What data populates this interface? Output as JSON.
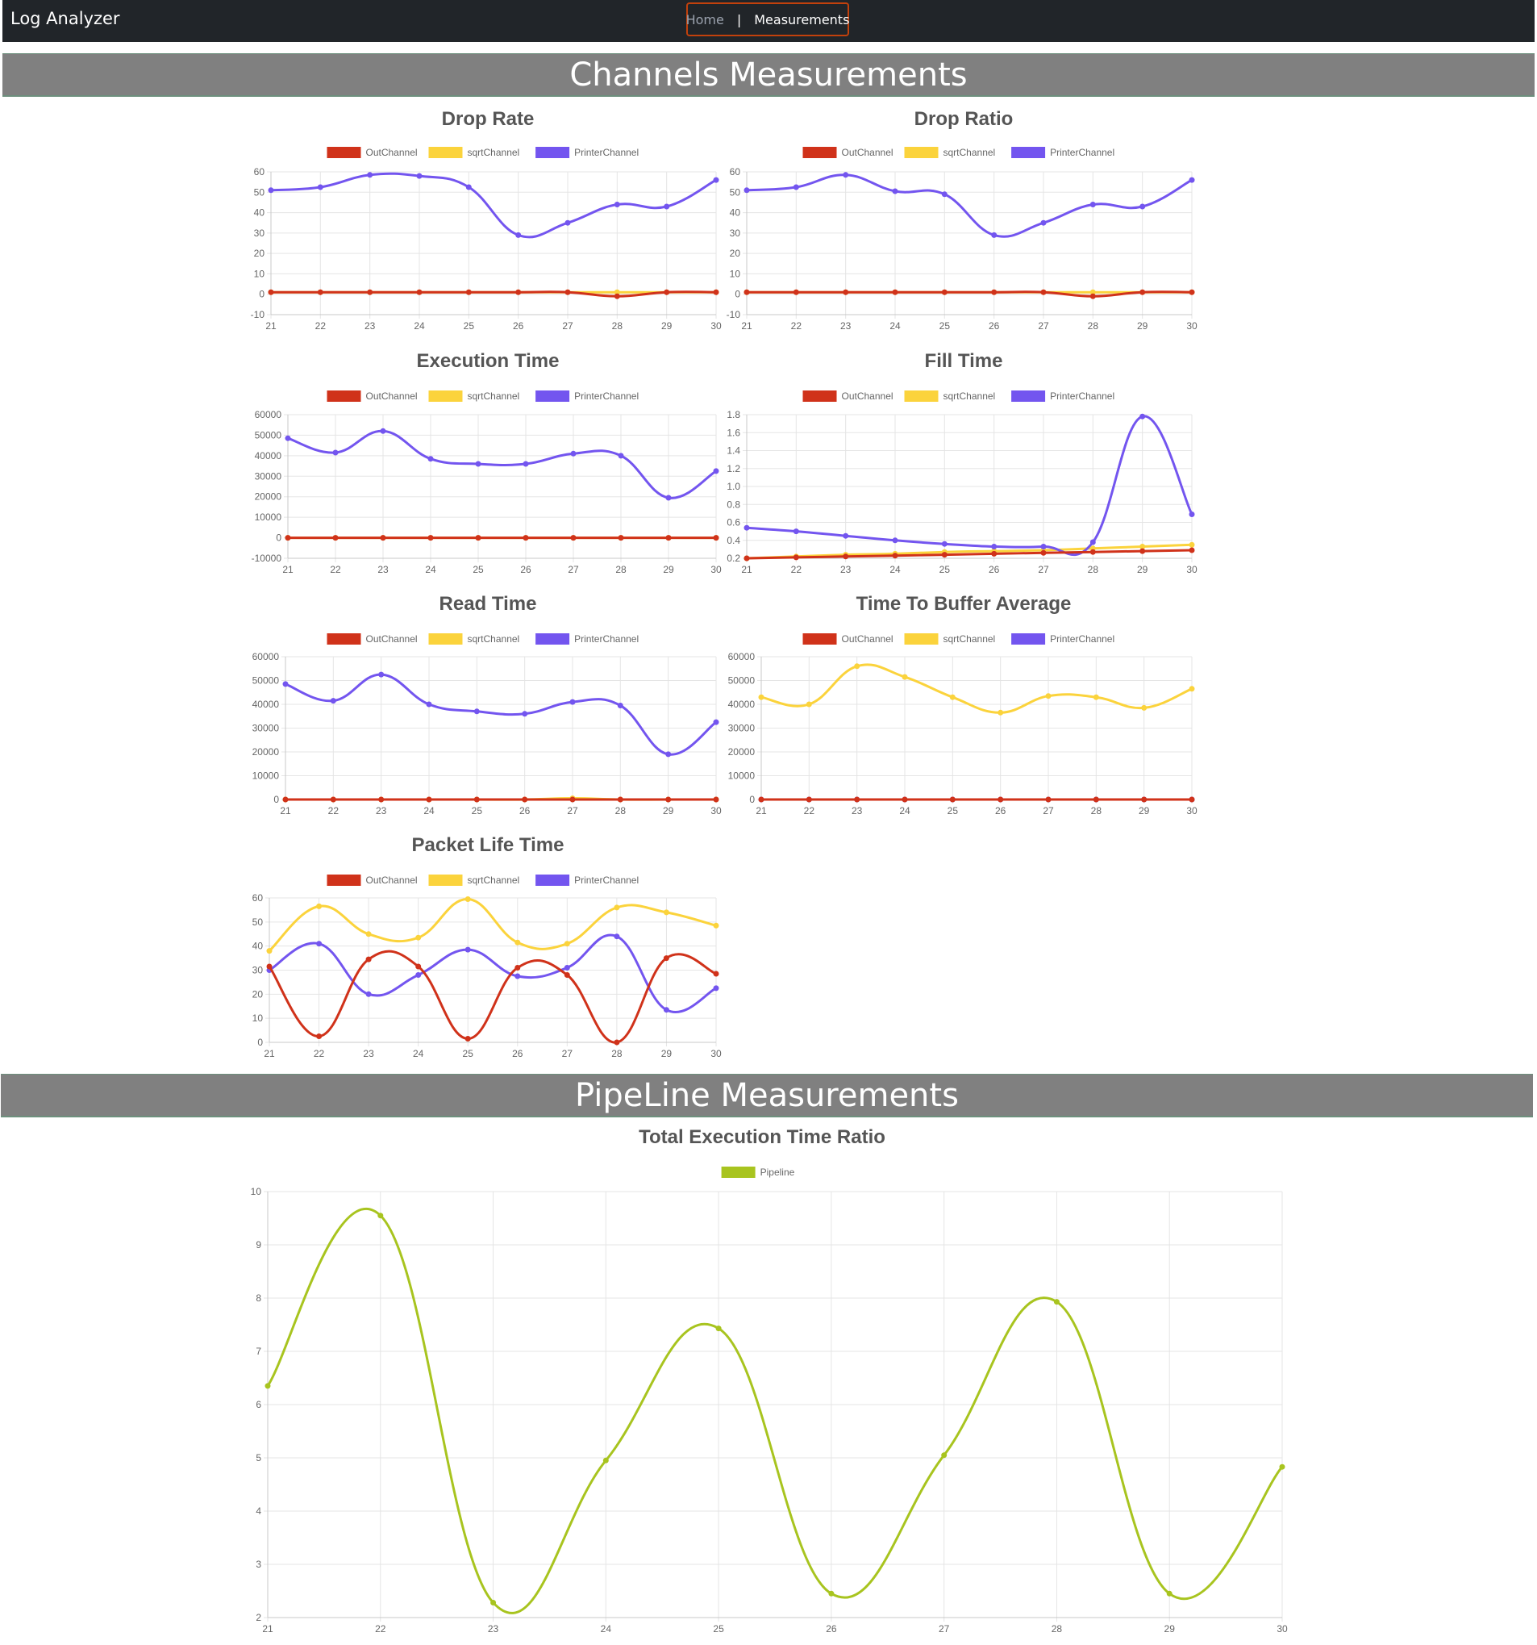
{
  "nav": {
    "brand": "Log Analyzer",
    "links": [
      "Home",
      "Measurements"
    ],
    "separator": "|"
  },
  "sections": {
    "channels": "Channels Measurements",
    "pipeline": "PipeLine Measurements"
  },
  "colors": {
    "OutChannel": "#d0321a",
    "sqrtChannel": "#fbd33c",
    "PrinterChannel": "#7355ef",
    "Pipeline": "#a8c41f",
    "grid": "#e5e5e5"
  },
  "chart_data": [
    {
      "type": "line",
      "title": "Drop Rate",
      "x": [
        21,
        22,
        23,
        24,
        25,
        26,
        27,
        28,
        29,
        30
      ],
      "ylim": [
        -10,
        60
      ],
      "yticks": [
        -10,
        0,
        10,
        20,
        30,
        40,
        50,
        60
      ],
      "series": [
        {
          "name": "OutChannel",
          "values": [
            1,
            1,
            1,
            1,
            1,
            1,
            1,
            -1,
            1,
            1
          ]
        },
        {
          "name": "sqrtChannel",
          "values": [
            1,
            1,
            1,
            1,
            1,
            1,
            1,
            1,
            1,
            1
          ]
        },
        {
          "name": "PrinterChannel",
          "values": [
            51,
            52.5,
            58.5,
            58,
            52.5,
            29,
            35,
            44,
            43,
            56
          ]
        }
      ]
    },
    {
      "type": "line",
      "title": "Drop Ratio",
      "x": [
        21,
        22,
        23,
        24,
        25,
        26,
        27,
        28,
        29,
        30
      ],
      "ylim": [
        -10,
        60
      ],
      "yticks": [
        -10,
        0,
        10,
        20,
        30,
        40,
        50,
        60
      ],
      "series": [
        {
          "name": "OutChannel",
          "values": [
            1,
            1,
            1,
            1,
            1,
            1,
            1,
            -1,
            1,
            1
          ]
        },
        {
          "name": "sqrtChannel",
          "values": [
            1,
            1,
            1,
            1,
            1,
            1,
            1,
            1,
            1,
            1
          ]
        },
        {
          "name": "PrinterChannel",
          "values": [
            51,
            52.5,
            58.5,
            50.5,
            49,
            29,
            35,
            44,
            43,
            56
          ]
        }
      ]
    },
    {
      "type": "line",
      "title": "Execution Time",
      "x": [
        21,
        22,
        23,
        24,
        25,
        26,
        27,
        28,
        29,
        30
      ],
      "ylim": [
        -10000,
        60000
      ],
      "yticks": [
        -10000,
        0,
        10000,
        20000,
        30000,
        40000,
        50000,
        60000
      ],
      "series": [
        {
          "name": "OutChannel",
          "values": [
            0,
            0,
            0,
            0,
            0,
            0,
            0,
            0,
            0,
            0
          ]
        },
        {
          "name": "sqrtChannel",
          "values": [
            0,
            0,
            0,
            0,
            0,
            0,
            0,
            0,
            0,
            0
          ]
        },
        {
          "name": "PrinterChannel",
          "values": [
            48500,
            41500,
            52000,
            38500,
            36000,
            36000,
            41000,
            40000,
            19500,
            32500
          ]
        }
      ]
    },
    {
      "type": "line",
      "title": "Fill Time",
      "x": [
        21,
        22,
        23,
        24,
        25,
        26,
        27,
        28,
        29,
        30
      ],
      "ylim": [
        0.2,
        1.8
      ],
      "yticks": [
        0.2,
        0.4,
        0.6,
        0.8,
        1.0,
        1.2,
        1.4,
        1.6,
        1.8
      ],
      "series": [
        {
          "name": "OutChannel",
          "values": [
            0.2,
            0.21,
            0.22,
            0.23,
            0.24,
            0.25,
            0.26,
            0.27,
            0.28,
            0.29
          ]
        },
        {
          "name": "sqrtChannel",
          "values": [
            0.2,
            0.22,
            0.24,
            0.25,
            0.27,
            0.28,
            0.29,
            0.31,
            0.33,
            0.35
          ]
        },
        {
          "name": "PrinterChannel",
          "values": [
            0.54,
            0.5,
            0.45,
            0.4,
            0.36,
            0.33,
            0.33,
            0.38,
            1.78,
            0.69
          ]
        }
      ]
    },
    {
      "type": "line",
      "title": "Read Time",
      "x": [
        21,
        22,
        23,
        24,
        25,
        26,
        27,
        28,
        29,
        30
      ],
      "ylim": [
        0,
        60000
      ],
      "yticks": [
        0,
        10000,
        20000,
        30000,
        40000,
        50000,
        60000
      ],
      "series": [
        {
          "name": "OutChannel",
          "values": [
            0,
            0,
            0,
            0,
            0,
            0,
            0,
            0,
            0,
            0
          ]
        },
        {
          "name": "sqrtChannel",
          "values": [
            0,
            0,
            0,
            0,
            0,
            0,
            500,
            0,
            0,
            0
          ]
        },
        {
          "name": "PrinterChannel",
          "values": [
            48500,
            41500,
            52500,
            40000,
            37000,
            36000,
            41000,
            39500,
            19000,
            32500
          ]
        }
      ]
    },
    {
      "type": "line",
      "title": "Time To Buffer Average",
      "x": [
        21,
        22,
        23,
        24,
        25,
        26,
        27,
        28,
        29,
        30
      ],
      "ylim": [
        0,
        60000
      ],
      "yticks": [
        0,
        10000,
        20000,
        30000,
        40000,
        50000,
        60000
      ],
      "series": [
        {
          "name": "OutChannel",
          "values": [
            0,
            0,
            0,
            0,
            0,
            0,
            0,
            0,
            0,
            0
          ]
        },
        {
          "name": "sqrtChannel",
          "values": [
            43000,
            40000,
            56000,
            51500,
            43000,
            36500,
            43500,
            43000,
            38500,
            46500
          ]
        },
        {
          "name": "PrinterChannel",
          "values": [
            0,
            0,
            0,
            0,
            0,
            0,
            0,
            0,
            0,
            0
          ]
        }
      ]
    },
    {
      "type": "line",
      "title": "Packet Life Time",
      "x": [
        21,
        22,
        23,
        24,
        25,
        26,
        27,
        28,
        29,
        30
      ],
      "ylim": [
        0,
        60
      ],
      "yticks": [
        0,
        10,
        20,
        30,
        40,
        50,
        60
      ],
      "series": [
        {
          "name": "OutChannel",
          "values": [
            31.5,
            2.5,
            34.5,
            31.5,
            1.5,
            31,
            28,
            0,
            35,
            28.5
          ]
        },
        {
          "name": "sqrtChannel",
          "values": [
            38,
            56.5,
            45,
            43.5,
            59.5,
            41.5,
            41,
            56,
            54,
            48.5
          ]
        },
        {
          "name": "PrinterChannel",
          "values": [
            30,
            41,
            20,
            28,
            38.5,
            27.5,
            31,
            44,
            13.5,
            22.5
          ]
        }
      ]
    },
    {
      "type": "line",
      "title": "Total Execution Time Ratio",
      "x": [
        21,
        22,
        23,
        24,
        25,
        26,
        27,
        28,
        29,
        30
      ],
      "ylim": [
        2,
        10
      ],
      "yticks": [
        2,
        3,
        4,
        5,
        6,
        7,
        8,
        9,
        10
      ],
      "series": [
        {
          "name": "Pipeline",
          "values": [
            6.35,
            9.55,
            2.28,
            4.95,
            7.43,
            2.45,
            5.05,
            7.93,
            2.45,
            4.83
          ]
        }
      ]
    }
  ]
}
